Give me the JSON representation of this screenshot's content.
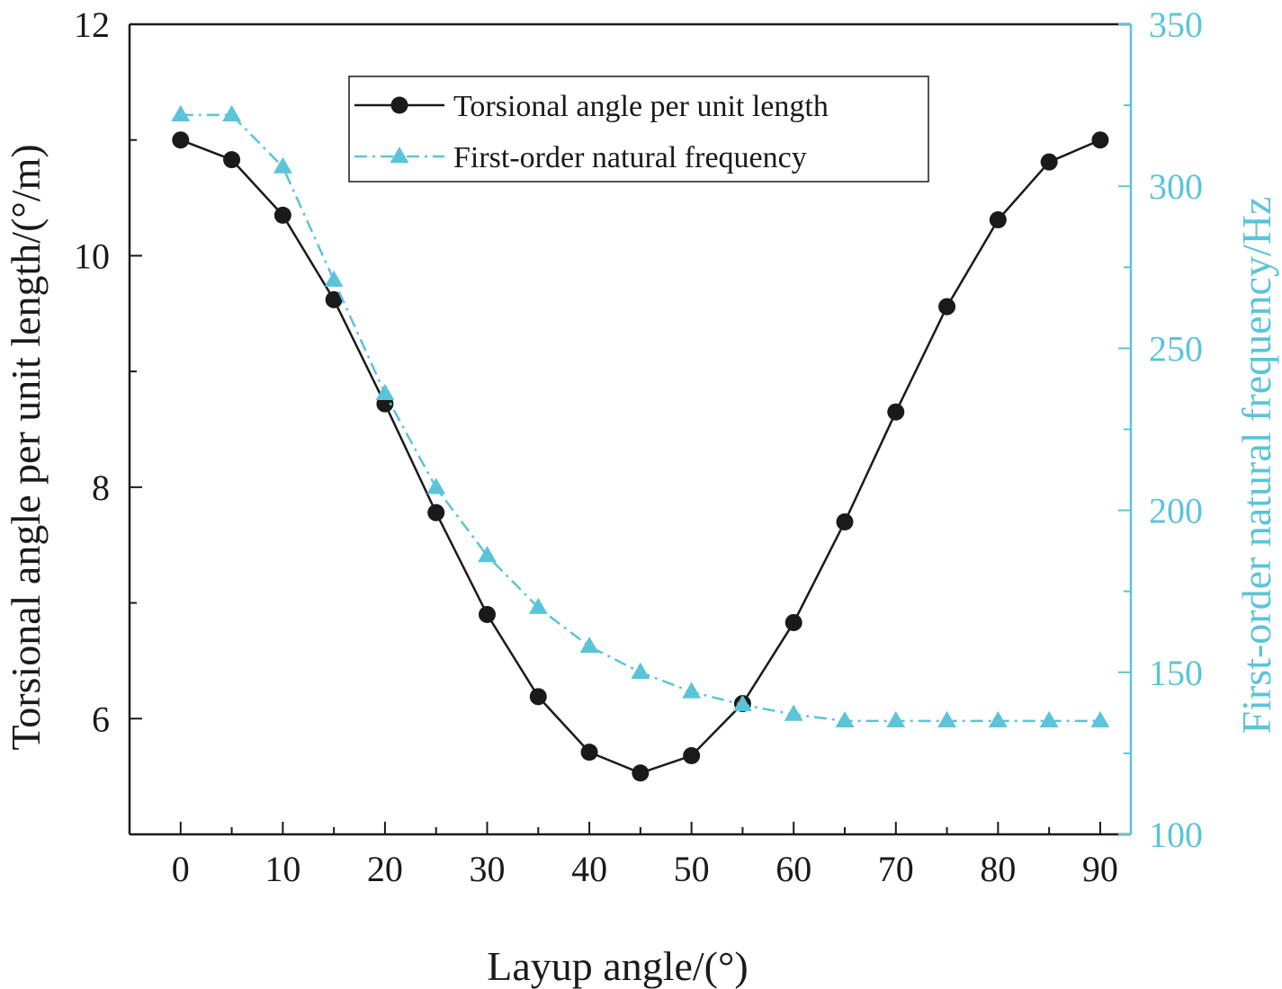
{
  "chart_data": {
    "type": "line",
    "title": "",
    "xlabel": "Layup angle/(°)",
    "ylabel": "Torsional angle per unit length/(°/m)",
    "y2label": "First-order natural frequency/Hz",
    "x": [
      0,
      5,
      10,
      15,
      20,
      25,
      30,
      35,
      40,
      45,
      50,
      55,
      60,
      65,
      70,
      75,
      80,
      85,
      90
    ],
    "xlim": [
      -5,
      93
    ],
    "ylim": [
      5.0,
      12.0
    ],
    "y2lim": [
      100,
      350
    ],
    "xticks": [
      "0",
      "10",
      "20",
      "30",
      "40",
      "50",
      "60",
      "70",
      "80",
      "90"
    ],
    "yticks": [
      "6",
      "8",
      "10",
      "12"
    ],
    "y2ticks": [
      "100",
      "150",
      "200",
      "250",
      "300",
      "350"
    ],
    "grid": false,
    "legend_position": "top-center",
    "series": [
      {
        "name": "Torsional angle per unit length",
        "axis": "left",
        "color": "#1a1a1a",
        "marker": "circle",
        "line_style": "solid",
        "values": [
          11.0,
          10.83,
          10.35,
          9.62,
          8.72,
          7.78,
          6.9,
          6.19,
          5.71,
          5.53,
          5.68,
          6.13,
          6.83,
          7.7,
          8.65,
          9.56,
          10.31,
          10.81,
          11.0
        ]
      },
      {
        "name": "First-order natural frequency",
        "axis": "right",
        "color": "#5bc4d8",
        "marker": "triangle",
        "line_style": "dash-dot",
        "values": [
          322,
          322,
          306,
          271,
          236,
          207,
          186,
          170,
          158,
          150,
          144,
          140,
          137,
          135,
          135,
          135,
          135,
          135,
          135
        ]
      }
    ]
  }
}
